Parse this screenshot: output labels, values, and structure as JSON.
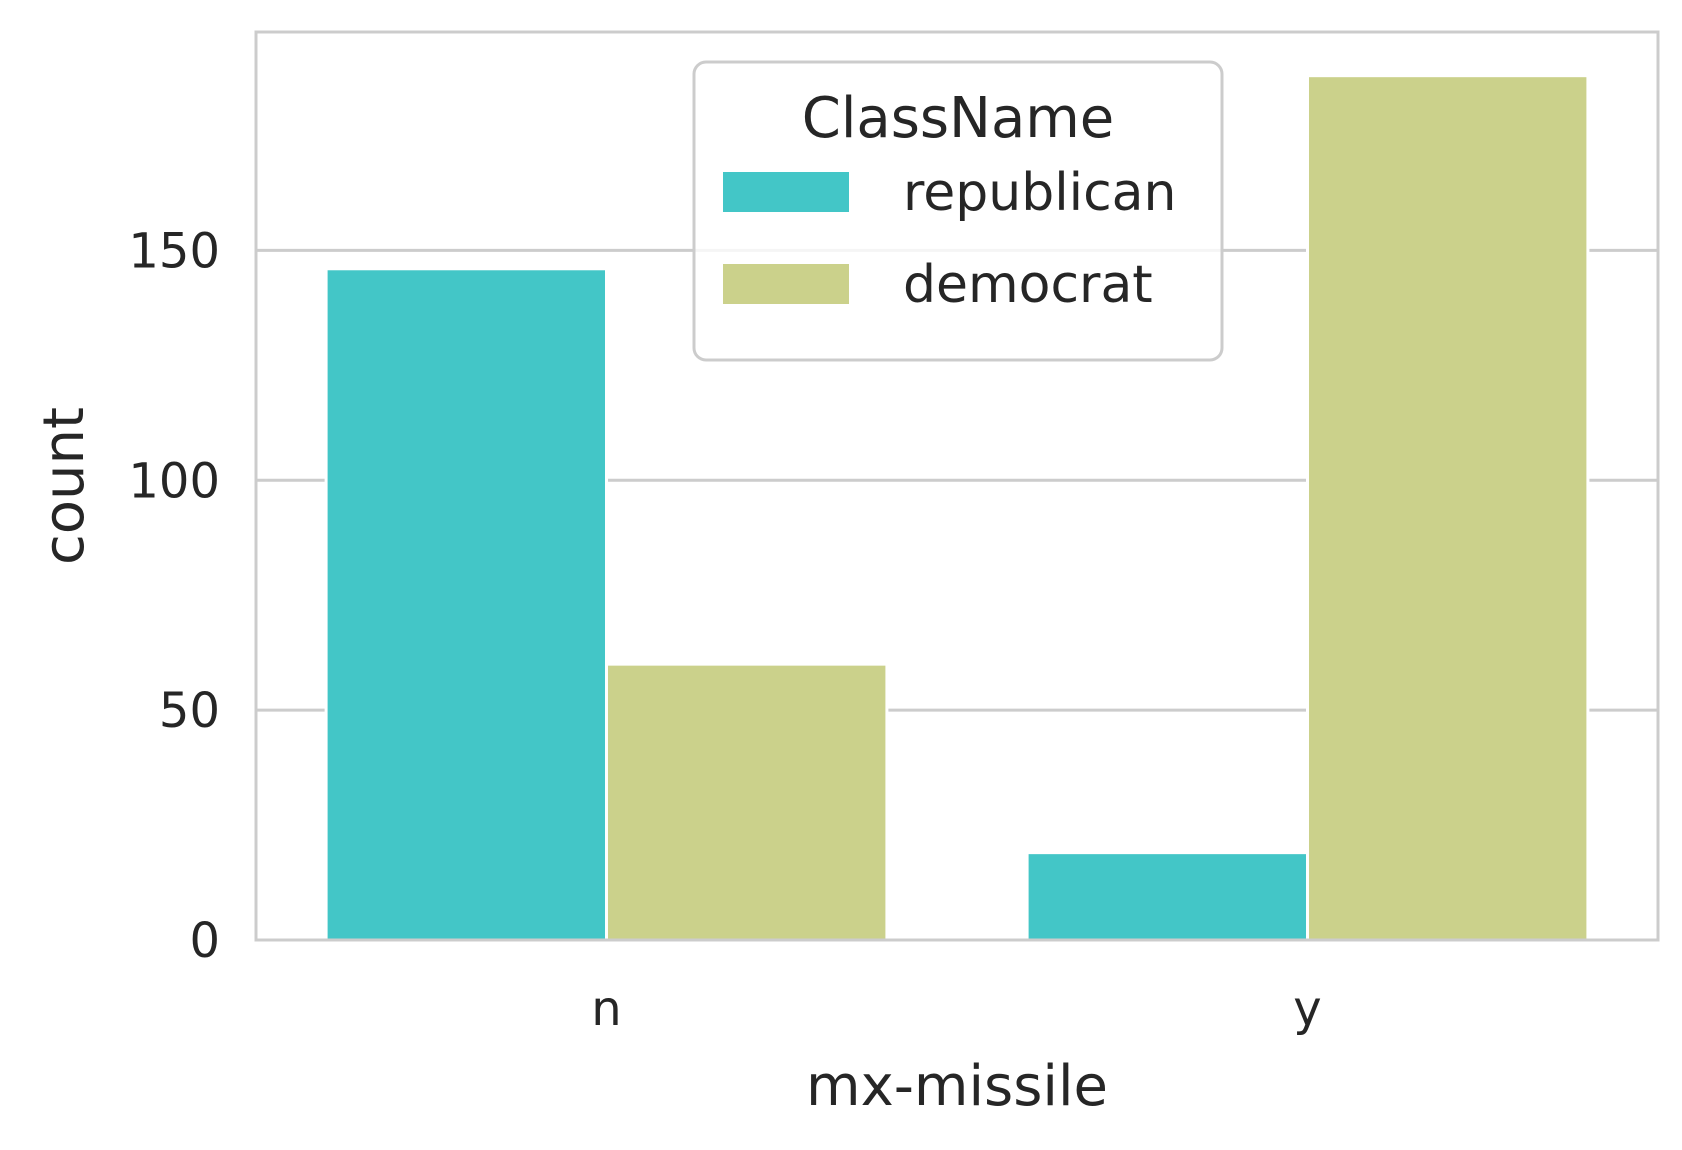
{
  "chart_data": {
    "type": "bar",
    "xlabel": "mx-missile",
    "ylabel": "count",
    "categories": [
      "n",
      "y"
    ],
    "series": [
      {
        "name": "republican",
        "color": "#43c6c7",
        "values": [
          146,
          19
        ]
      },
      {
        "name": "democrat",
        "color": "#cbd18b",
        "values": [
          60,
          188
        ]
      }
    ],
    "ylim": [
      0,
      197.5
    ],
    "yticks": [
      0,
      50,
      100,
      150
    ],
    "grid": true,
    "legend": {
      "title": "ClassName",
      "position": "upper center"
    }
  }
}
